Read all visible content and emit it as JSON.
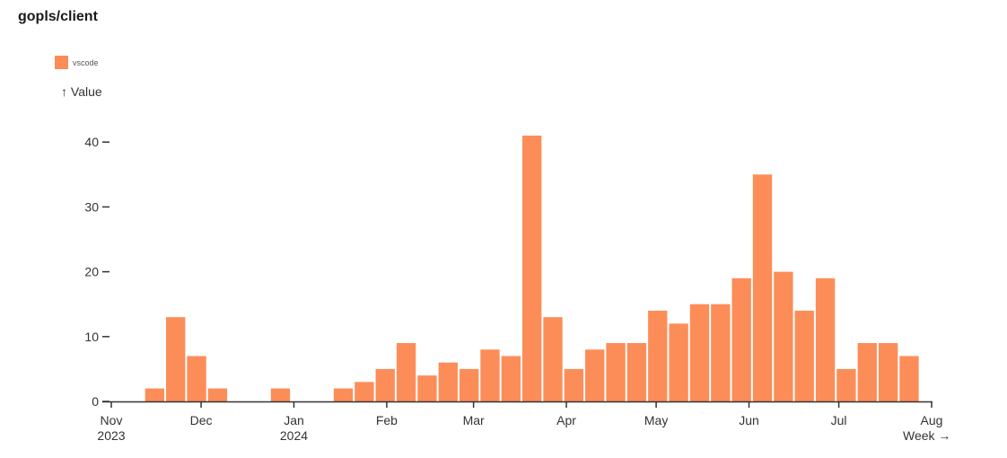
{
  "chart_data": {
    "type": "bar",
    "title": "gopls/client",
    "ylabel": "↑ Value",
    "xlabel": "Week →",
    "ylim": [
      0,
      41
    ],
    "legend_position": "top-left",
    "series": [
      {
        "name": "vscode",
        "color": "#fc8d59",
        "points": [
          {
            "week": "2023-11-12",
            "value": 2
          },
          {
            "week": "2023-11-19",
            "value": 13
          },
          {
            "week": "2023-11-26",
            "value": 7
          },
          {
            "week": "2023-12-03",
            "value": 2
          },
          {
            "week": "2023-12-24",
            "value": 2
          },
          {
            "week": "2024-01-14",
            "value": 2
          },
          {
            "week": "2024-01-21",
            "value": 3
          },
          {
            "week": "2024-01-28",
            "value": 5
          },
          {
            "week": "2024-02-04",
            "value": 9
          },
          {
            "week": "2024-02-11",
            "value": 4
          },
          {
            "week": "2024-02-18",
            "value": 6
          },
          {
            "week": "2024-02-25",
            "value": 5
          },
          {
            "week": "2024-03-03",
            "value": 8
          },
          {
            "week": "2024-03-10",
            "value": 7
          },
          {
            "week": "2024-03-17",
            "value": 41
          },
          {
            "week": "2024-03-24",
            "value": 13
          },
          {
            "week": "2024-03-31",
            "value": 5
          },
          {
            "week": "2024-04-07",
            "value": 8
          },
          {
            "week": "2024-04-14",
            "value": 9
          },
          {
            "week": "2024-04-21",
            "value": 9
          },
          {
            "week": "2024-04-28",
            "value": 14
          },
          {
            "week": "2024-05-05",
            "value": 12
          },
          {
            "week": "2024-05-12",
            "value": 15
          },
          {
            "week": "2024-05-19",
            "value": 15
          },
          {
            "week": "2024-05-26",
            "value": 19
          },
          {
            "week": "2024-06-02",
            "value": 35
          },
          {
            "week": "2024-06-09",
            "value": 20
          },
          {
            "week": "2024-06-16",
            "value": 14
          },
          {
            "week": "2024-06-23",
            "value": 19
          },
          {
            "week": "2024-06-30",
            "value": 5
          },
          {
            "week": "2024-07-07",
            "value": 9
          },
          {
            "week": "2024-07-14",
            "value": 9
          },
          {
            "week": "2024-07-21",
            "value": 7
          }
        ]
      }
    ],
    "y_ticks": [
      {
        "label": "0",
        "value": 0
      },
      {
        "label": "10",
        "value": 10
      },
      {
        "label": "20",
        "value": 20
      },
      {
        "label": "30",
        "value": 30
      },
      {
        "label": "40",
        "value": 40
      }
    ],
    "x_ticks": [
      {
        "date": "2023-11-01",
        "label": "Nov",
        "sublabel": "2023"
      },
      {
        "date": "2023-12-01",
        "label": "Dec",
        "sublabel": ""
      },
      {
        "date": "2024-01-01",
        "label": "Jan",
        "sublabel": "2024"
      },
      {
        "date": "2024-02-01",
        "label": "Feb",
        "sublabel": ""
      },
      {
        "date": "2024-03-01",
        "label": "Mar",
        "sublabel": ""
      },
      {
        "date": "2024-04-01",
        "label": "Apr",
        "sublabel": ""
      },
      {
        "date": "2024-05-01",
        "label": "May",
        "sublabel": ""
      },
      {
        "date": "2024-06-01",
        "label": "Jun",
        "sublabel": ""
      },
      {
        "date": "2024-07-01",
        "label": "Jul",
        "sublabel": ""
      },
      {
        "date": "2024-08-01",
        "label": "Aug",
        "sublabel": ""
      }
    ]
  }
}
